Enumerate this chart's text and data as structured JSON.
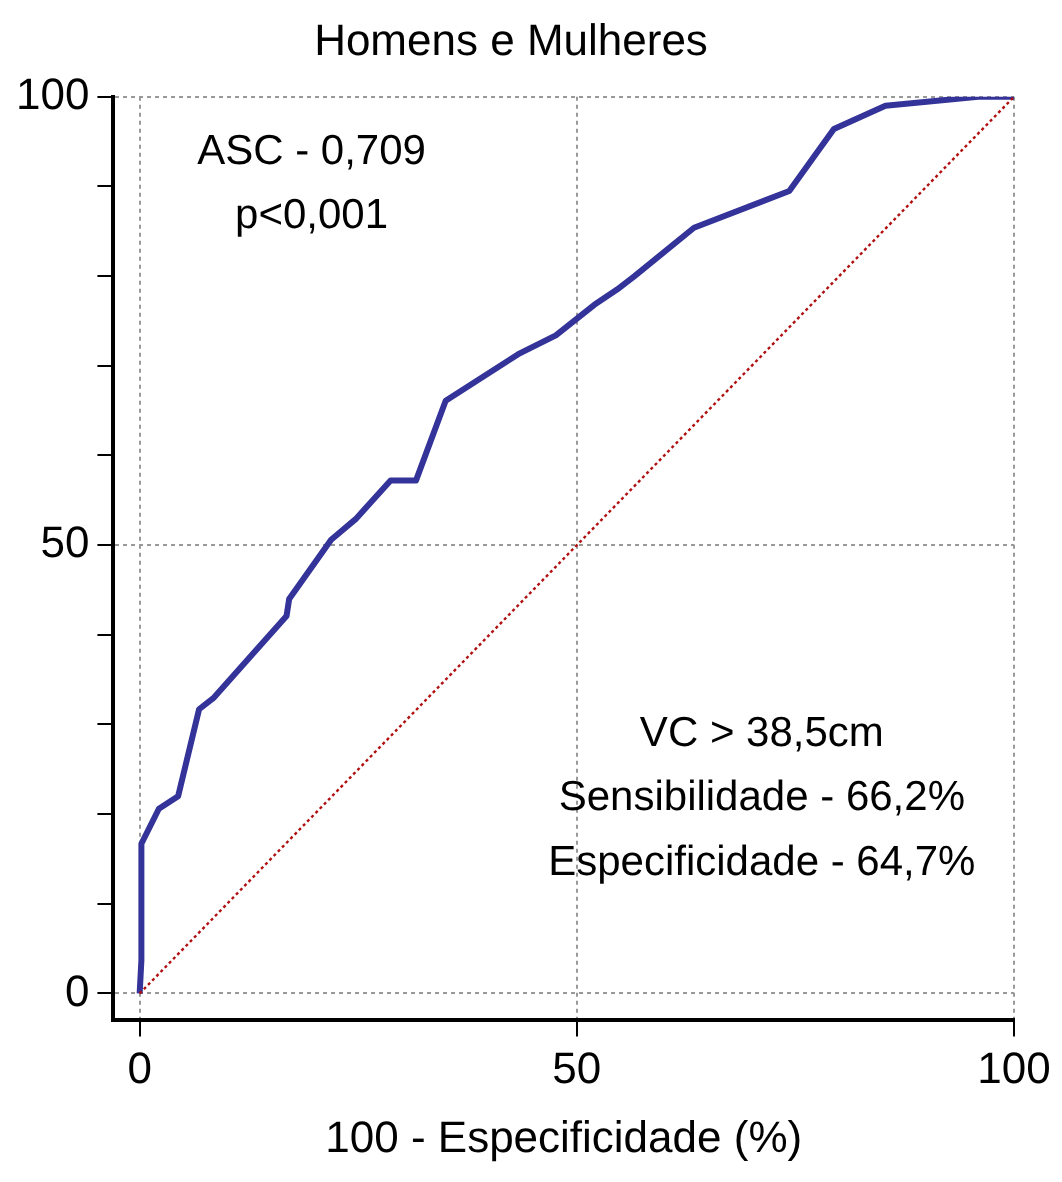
{
  "chart_data": {
    "type": "line",
    "title": "Homens e Mulheres",
    "xlabel": "100 - Especificidade (%)",
    "xlim": [
      -3,
      100
    ],
    "xticks": [
      0,
      50,
      100
    ],
    "ylim": [
      -3,
      100
    ],
    "yticks": [
      0,
      {
        "value": 10,
        "label": null
      },
      {
        "value": 20,
        "label": null
      },
      {
        "value": 30,
        "label": null
      },
      {
        "value": 40,
        "label": null
      },
      50,
      {
        "value": 60,
        "label": null
      },
      {
        "value": 70,
        "label": null
      },
      {
        "value": 80,
        "label": null
      },
      {
        "value": 90,
        "label": null
      },
      100
    ],
    "grid": true,
    "marker": "none",
    "series": [
      {
        "color": "#333399",
        "line_style": "solid",
        "x": [
          0,
          0.2,
          0.2,
          2.2,
          4.4,
          6.8,
          8.5,
          16.8,
          17.1,
          21.9,
          24.7,
          28.7,
          31.6,
          35.0,
          43.3,
          47.6,
          52.0,
          54.6,
          56.6,
          63.4,
          74.3,
          79.4,
          85.3,
          95.9,
          100
        ],
        "values": [
          0,
          3.7,
          16.7,
          20.6,
          22.0,
          31.7,
          33.0,
          42.1,
          44.0,
          50.6,
          52.9,
          57.2,
          57.2,
          66.1,
          71.3,
          73.4,
          76.8,
          78.5,
          80.0,
          85.4,
          89.5,
          96.4,
          99.0,
          100,
          100
        ]
      },
      {
        "color": "#b01010",
        "line_style": "dotted",
        "x": [
          0,
          100
        ],
        "values": [
          0,
          100
        ]
      }
    ],
    "annotations": [
      "ASC - 0,709",
      "p<0,001",
      "VC > 38,5cm",
      "Sensibilidade - 66,2%",
      "Especificidade - 64,7%"
    ]
  }
}
